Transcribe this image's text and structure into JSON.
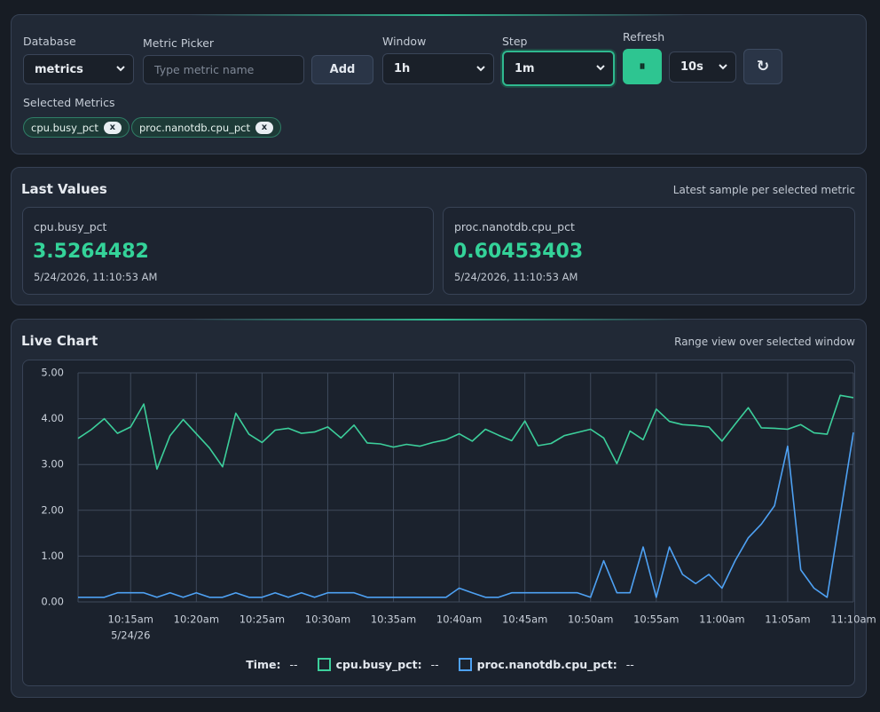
{
  "controls": {
    "database": {
      "label": "Database",
      "value": "metrics"
    },
    "metric_picker": {
      "label": "Metric Picker",
      "placeholder": "Type metric name",
      "button": "Add"
    },
    "window": {
      "label": "Window",
      "value": "1h"
    },
    "step": {
      "label": "Step",
      "value": "1m"
    },
    "refresh": {
      "label": "Refresh",
      "pause": "⏸",
      "interval": "10s",
      "reload": "↻"
    },
    "selected": {
      "label": "Selected Metrics",
      "chips": [
        {
          "name": "cpu.busy_pct",
          "remove": "x"
        },
        {
          "name": "proc.nanotdb.cpu_pct",
          "remove": "x"
        }
      ]
    }
  },
  "last_values": {
    "title": "Last Values",
    "subtitle": "Latest sample per selected metric",
    "cards": [
      {
        "name": "cpu.busy_pct",
        "value": "3.5264482",
        "time": "5/24/2026, 11:10:53 AM"
      },
      {
        "name": "proc.nanotdb.cpu_pct",
        "value": "0.60453403",
        "time": "5/24/2026, 11:10:53 AM"
      }
    ]
  },
  "chart": {
    "title": "Live Chart",
    "subtitle": "Range view over selected window",
    "chart_data": {
      "type": "line",
      "x": [
        "10:11am",
        "10:12am",
        "10:13am",
        "10:14am",
        "10:15am",
        "10:16am",
        "10:17am",
        "10:18am",
        "10:19am",
        "10:20am",
        "10:21am",
        "10:22am",
        "10:23am",
        "10:24am",
        "10:25am",
        "10:26am",
        "10:27am",
        "10:28am",
        "10:29am",
        "10:30am",
        "10:31am",
        "10:32am",
        "10:33am",
        "10:34am",
        "10:35am",
        "10:36am",
        "10:37am",
        "10:38am",
        "10:39am",
        "10:40am",
        "10:41am",
        "10:42am",
        "10:43am",
        "10:44am",
        "10:45am",
        "10:46am",
        "10:47am",
        "10:48am",
        "10:49am",
        "10:50am",
        "10:51am",
        "10:52am",
        "10:53am",
        "10:54am",
        "10:55am",
        "10:56am",
        "10:57am",
        "10:58am",
        "10:59am",
        "11:00am",
        "11:01am",
        "11:02am",
        "11:03am",
        "11:04am",
        "11:05am",
        "11:06am",
        "11:07am",
        "11:08am",
        "11:09am",
        "11:10am"
      ],
      "series": [
        {
          "name": "cpu.busy_pct",
          "color": "#3ccf9b",
          "values": [
            3.57,
            3.76,
            4.0,
            3.68,
            3.82,
            4.32,
            2.9,
            3.63,
            3.98,
            3.67,
            3.36,
            2.95,
            4.12,
            3.66,
            3.48,
            3.75,
            3.79,
            3.68,
            3.71,
            3.82,
            3.58,
            3.86,
            3.47,
            3.45,
            3.38,
            3.44,
            3.4,
            3.48,
            3.54,
            3.67,
            3.51,
            3.77,
            3.64,
            3.52,
            3.95,
            3.41,
            3.46,
            3.63,
            3.7,
            3.77,
            3.58,
            3.02,
            3.73,
            3.54,
            4.21,
            3.94,
            3.87,
            3.85,
            3.82,
            3.51,
            3.88,
            4.24,
            3.8,
            3.79,
            3.77,
            3.87,
            3.69,
            3.66,
            4.51,
            4.46
          ]
        },
        {
          "name": "proc.nanotdb.cpu_pct",
          "color": "#4ea1f3",
          "values": [
            0.1,
            0.1,
            0.1,
            0.2,
            0.2,
            0.2,
            0.1,
            0.2,
            0.1,
            0.2,
            0.1,
            0.1,
            0.2,
            0.1,
            0.1,
            0.2,
            0.1,
            0.2,
            0.1,
            0.2,
            0.2,
            0.2,
            0.1,
            0.1,
            0.1,
            0.1,
            0.1,
            0.1,
            0.1,
            0.3,
            0.2,
            0.1,
            0.1,
            0.2,
            0.2,
            0.2,
            0.2,
            0.2,
            0.2,
            0.1,
            0.9,
            0.2,
            0.2,
            1.2,
            0.1,
            1.2,
            0.6,
            0.4,
            0.6,
            0.3,
            0.9,
            1.4,
            1.7,
            2.1,
            3.4,
            0.7,
            0.3,
            0.1,
            1.9,
            3.7
          ]
        }
      ],
      "ylim": [
        0,
        5
      ],
      "yticks": [
        {
          "value": 0,
          "label": "0.00"
        },
        {
          "value": 1,
          "label": "1.00"
        },
        {
          "value": 2,
          "label": "2.00"
        },
        {
          "value": 3,
          "label": "3.00"
        },
        {
          "value": 4,
          "label": "4.00"
        },
        {
          "value": 5,
          "label": "5.00"
        }
      ],
      "xticks": [
        "10:15am",
        "10:20am",
        "10:25am",
        "10:30am",
        "10:35am",
        "10:40am",
        "10:45am",
        "10:50am",
        "10:55am",
        "11:00am",
        "11:05am",
        "11:10am"
      ],
      "xtick_date": "5/24/26",
      "grid": true,
      "legend": {
        "time": "Time:",
        "empty": "--",
        "separator": ":"
      }
    }
  }
}
